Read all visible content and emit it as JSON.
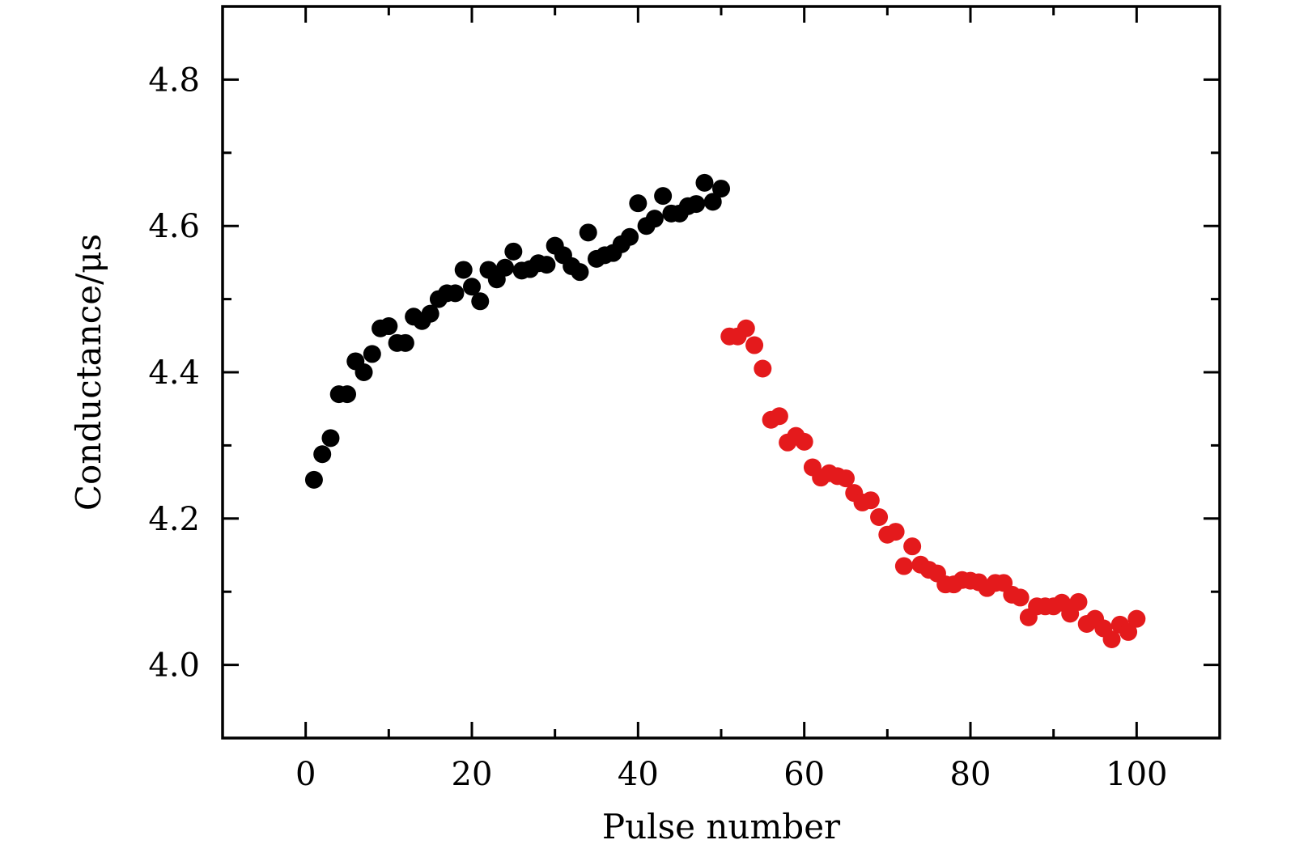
{
  "chart_data": {
    "type": "scatter",
    "title": "",
    "xlabel": "Pulse number",
    "ylabel": "Conductance/μs",
    "xlim": [
      -10,
      110
    ],
    "ylim": [
      3.9,
      4.9
    ],
    "xticks": [
      0,
      20,
      40,
      60,
      80,
      100
    ],
    "xtick_labels": [
      "0",
      "20",
      "40",
      "60",
      "80",
      "100"
    ],
    "xminor_ticks": [
      10,
      30,
      50,
      70,
      90
    ],
    "yticks": [
      4.0,
      4.2,
      4.4,
      4.6,
      4.8
    ],
    "ytick_labels": [
      "4.0",
      "4.2",
      "4.4",
      "4.6",
      "4.8"
    ],
    "yminor_ticks": [
      4.1,
      4.3,
      4.5,
      4.7
    ],
    "grid": false,
    "legend": "none",
    "series": [
      {
        "color": "#000000",
        "x": [
          1,
          2,
          3,
          4,
          5,
          6,
          7,
          8,
          9,
          10,
          11,
          12,
          13,
          14,
          15,
          16,
          17,
          18,
          19,
          20,
          21,
          22,
          23,
          24,
          25,
          26,
          27,
          28,
          29,
          30,
          31,
          32,
          33,
          34,
          35,
          36,
          37,
          38,
          39,
          40,
          41,
          42,
          43,
          44,
          45,
          46,
          47,
          48,
          49,
          50
        ],
        "y": [
          4.253,
          4.288,
          4.31,
          4.37,
          4.37,
          4.415,
          4.4,
          4.425,
          4.46,
          4.463,
          4.44,
          4.44,
          4.476,
          4.47,
          4.48,
          4.5,
          4.508,
          4.508,
          4.54,
          4.517,
          4.497,
          4.54,
          4.527,
          4.543,
          4.565,
          4.539,
          4.541,
          4.549,
          4.547,
          4.573,
          4.56,
          4.545,
          4.537,
          4.591,
          4.555,
          4.56,
          4.563,
          4.575,
          4.585,
          4.631,
          4.6,
          4.61,
          4.641,
          4.617,
          4.617,
          4.627,
          4.63,
          4.659,
          4.633,
          4.651
        ]
      },
      {
        "color": "#e41a1c",
        "x": [
          51,
          52,
          53,
          54,
          55,
          56,
          57,
          58,
          59,
          60,
          61,
          62,
          63,
          64,
          65,
          66,
          67,
          68,
          69,
          70,
          71,
          72,
          73,
          74,
          75,
          76,
          77,
          78,
          79,
          80,
          81,
          82,
          83,
          84,
          85,
          86,
          87,
          88,
          89,
          90,
          91,
          92,
          93,
          94,
          95,
          96,
          97,
          98,
          99,
          100
        ],
        "y": [
          4.449,
          4.449,
          4.46,
          4.437,
          4.405,
          4.335,
          4.34,
          4.304,
          4.313,
          4.305,
          4.27,
          4.256,
          4.262,
          4.258,
          4.255,
          4.235,
          4.222,
          4.225,
          4.202,
          4.178,
          4.182,
          4.135,
          4.162,
          4.137,
          4.13,
          4.125,
          4.11,
          4.11,
          4.116,
          4.115,
          4.113,
          4.105,
          4.112,
          4.112,
          4.096,
          4.092,
          4.065,
          4.08,
          4.08,
          4.08,
          4.085,
          4.07,
          4.086,
          4.056,
          4.063,
          4.05,
          4.035,
          4.055,
          4.045,
          4.063
        ]
      }
    ]
  }
}
